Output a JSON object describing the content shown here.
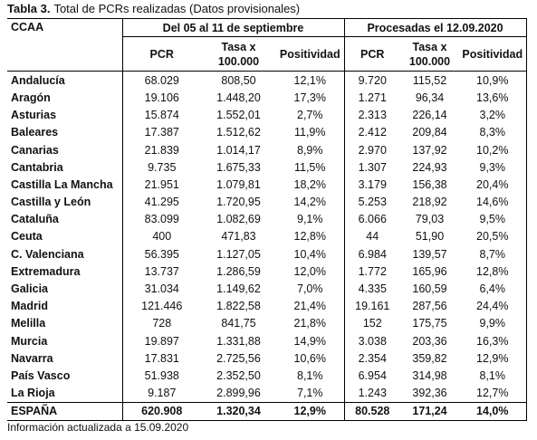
{
  "title": {
    "label": "Tabla 3.",
    "text": "Total de PCRs realizadas (Datos provisionales)"
  },
  "table": {
    "row_header": "CCAA",
    "groups": [
      "Del 05 al 11 de septiembre",
      "Procesadas el 12.09.2020"
    ],
    "columns": [
      [
        "PCR",
        "Tasa x 100.000",
        "Positividad"
      ],
      [
        "PCR",
        "Tasa x 100.000",
        "Positividad"
      ]
    ],
    "rows": [
      [
        "Andalucía",
        "68.029",
        "808,50",
        "12,1%",
        "9.720",
        "115,52",
        "10,9%"
      ],
      [
        "Aragón",
        "19.106",
        "1.448,20",
        "17,3%",
        "1.271",
        "96,34",
        "13,6%"
      ],
      [
        "Asturias",
        "15.874",
        "1.552,01",
        "2,7%",
        "2.313",
        "226,14",
        "3,2%"
      ],
      [
        "Baleares",
        "17.387",
        "1.512,62",
        "11,9%",
        "2.412",
        "209,84",
        "8,3%"
      ],
      [
        "Canarias",
        "21.839",
        "1.014,17",
        "8,9%",
        "2.970",
        "137,92",
        "10,2%"
      ],
      [
        "Cantabria",
        "9.735",
        "1.675,33",
        "11,5%",
        "1.307",
        "224,93",
        "9,3%"
      ],
      [
        "Castilla La Mancha",
        "21.951",
        "1.079,81",
        "18,2%",
        "3.179",
        "156,38",
        "20,4%"
      ],
      [
        "Castilla y León",
        "41.295",
        "1.720,95",
        "14,2%",
        "5.253",
        "218,92",
        "14,6%"
      ],
      [
        "Cataluña",
        "83.099",
        "1.082,69",
        "9,1%",
        "6.066",
        "79,03",
        "9,5%"
      ],
      [
        "Ceuta",
        "400",
        "471,83",
        "12,8%",
        "44",
        "51,90",
        "20,5%"
      ],
      [
        "C. Valenciana",
        "56.395",
        "1.127,05",
        "10,4%",
        "6.984",
        "139,57",
        "8,7%"
      ],
      [
        "Extremadura",
        "13.737",
        "1.286,59",
        "12,0%",
        "1.772",
        "165,96",
        "12,8%"
      ],
      [
        "Galicia",
        "31.034",
        "1.149,62",
        "7,0%",
        "4.335",
        "160,59",
        "6,4%"
      ],
      [
        "Madrid",
        "121.446",
        "1.822,58",
        "21,4%",
        "19.161",
        "287,56",
        "24,4%"
      ],
      [
        "Melilla",
        "728",
        "841,75",
        "21,8%",
        "152",
        "175,75",
        "9,9%"
      ],
      [
        "Murcia",
        "19.897",
        "1.331,88",
        "14,9%",
        "3.038",
        "203,36",
        "16,3%"
      ],
      [
        "Navarra",
        "17.831",
        "2.725,56",
        "10,6%",
        "2.354",
        "359,82",
        "12,9%"
      ],
      [
        "País Vasco",
        "51.938",
        "2.352,50",
        "8,1%",
        "6.954",
        "314,98",
        "8,1%"
      ],
      [
        "La Rioja",
        "9.187",
        "2.899,96",
        "7,1%",
        "1.243",
        "392,36",
        "12,7%"
      ]
    ],
    "total": [
      "ESPAÑA",
      "620.908",
      "1.320,34",
      "12,9%",
      "80.528",
      "171,24",
      "14,0%"
    ]
  },
  "footnote": "Información actualizada a 15.09.2020"
}
